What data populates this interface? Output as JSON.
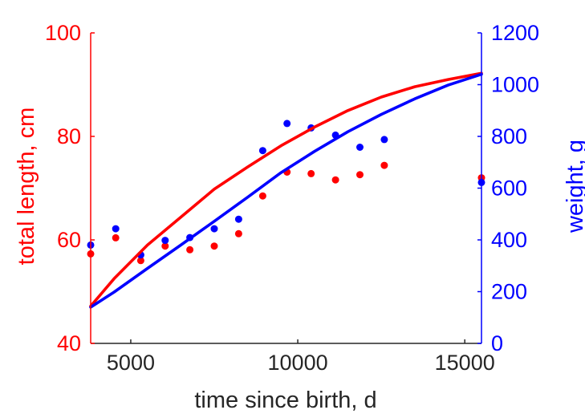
{
  "chart_data": {
    "type": "scatter",
    "title": "",
    "xlabel": "time since birth, d",
    "ylabel_left": "total length, cm",
    "ylabel_right": "weight, g",
    "xlim": [
      3800,
      15500
    ],
    "ylim_left": [
      40,
      100
    ],
    "ylim_right": [
      0,
      1200
    ],
    "xticks": [
      "5000",
      "10000",
      "15000"
    ],
    "xtick_values": [
      5000,
      10000,
      15000
    ],
    "yticks_left": [
      "40",
      "60",
      "80",
      "100"
    ],
    "ytick_values_left": [
      40,
      60,
      80,
      100
    ],
    "yticks_right": [
      "0",
      "200",
      "400",
      "600",
      "800",
      "1000",
      "1200"
    ],
    "ytick_values_right": [
      0,
      200,
      400,
      600,
      800,
      1000,
      1200
    ],
    "grid": false,
    "colors": {
      "length": "#ff0000",
      "weight": "#0000ff",
      "axis": "#262626"
    },
    "series": [
      {
        "axis": "left",
        "kind": "points",
        "color": "#ff0000",
        "x": [
          3800,
          4550,
          5300,
          6030,
          6770,
          7500,
          8230,
          8950,
          9680,
          10400,
          11130,
          11860,
          12590,
          15500
        ],
        "y": [
          57.3,
          60.4,
          56.0,
          58.8,
          58.1,
          58.8,
          61.2,
          68.5,
          73.1,
          72.8,
          71.6,
          72.6,
          74.4,
          72.0
        ]
      },
      {
        "axis": "right",
        "kind": "points",
        "color": "#0000ff",
        "x": [
          3800,
          4550,
          5300,
          6030,
          6770,
          7500,
          8230,
          8950,
          9680,
          10400,
          11130,
          11860,
          12590,
          15500
        ],
        "y": [
          380,
          443,
          342,
          398,
          409,
          443,
          480,
          745,
          850,
          833,
          805,
          758,
          788,
          622
        ]
      },
      {
        "axis": "left",
        "kind": "line",
        "color": "#ff0000",
        "x": [
          3800,
          4500,
          5500,
          6500,
          7500,
          8500,
          9500,
          10500,
          11500,
          12500,
          13500,
          14500,
          15500
        ],
        "y": [
          47.2,
          52.5,
          59.0,
          64.4,
          69.8,
          74.1,
          78.2,
          81.8,
          85.0,
          87.6,
          89.6,
          91.0,
          92.2
        ]
      },
      {
        "axis": "right",
        "kind": "line",
        "color": "#0000ff",
        "x": [
          3800,
          4500,
          5500,
          6500,
          7500,
          8500,
          9500,
          10500,
          11500,
          12500,
          13500,
          14500,
          15500
        ],
        "y": [
          140,
          198,
          290,
          380,
          472,
          565,
          660,
          742,
          818,
          885,
          945,
          998,
          1040
        ]
      }
    ]
  }
}
